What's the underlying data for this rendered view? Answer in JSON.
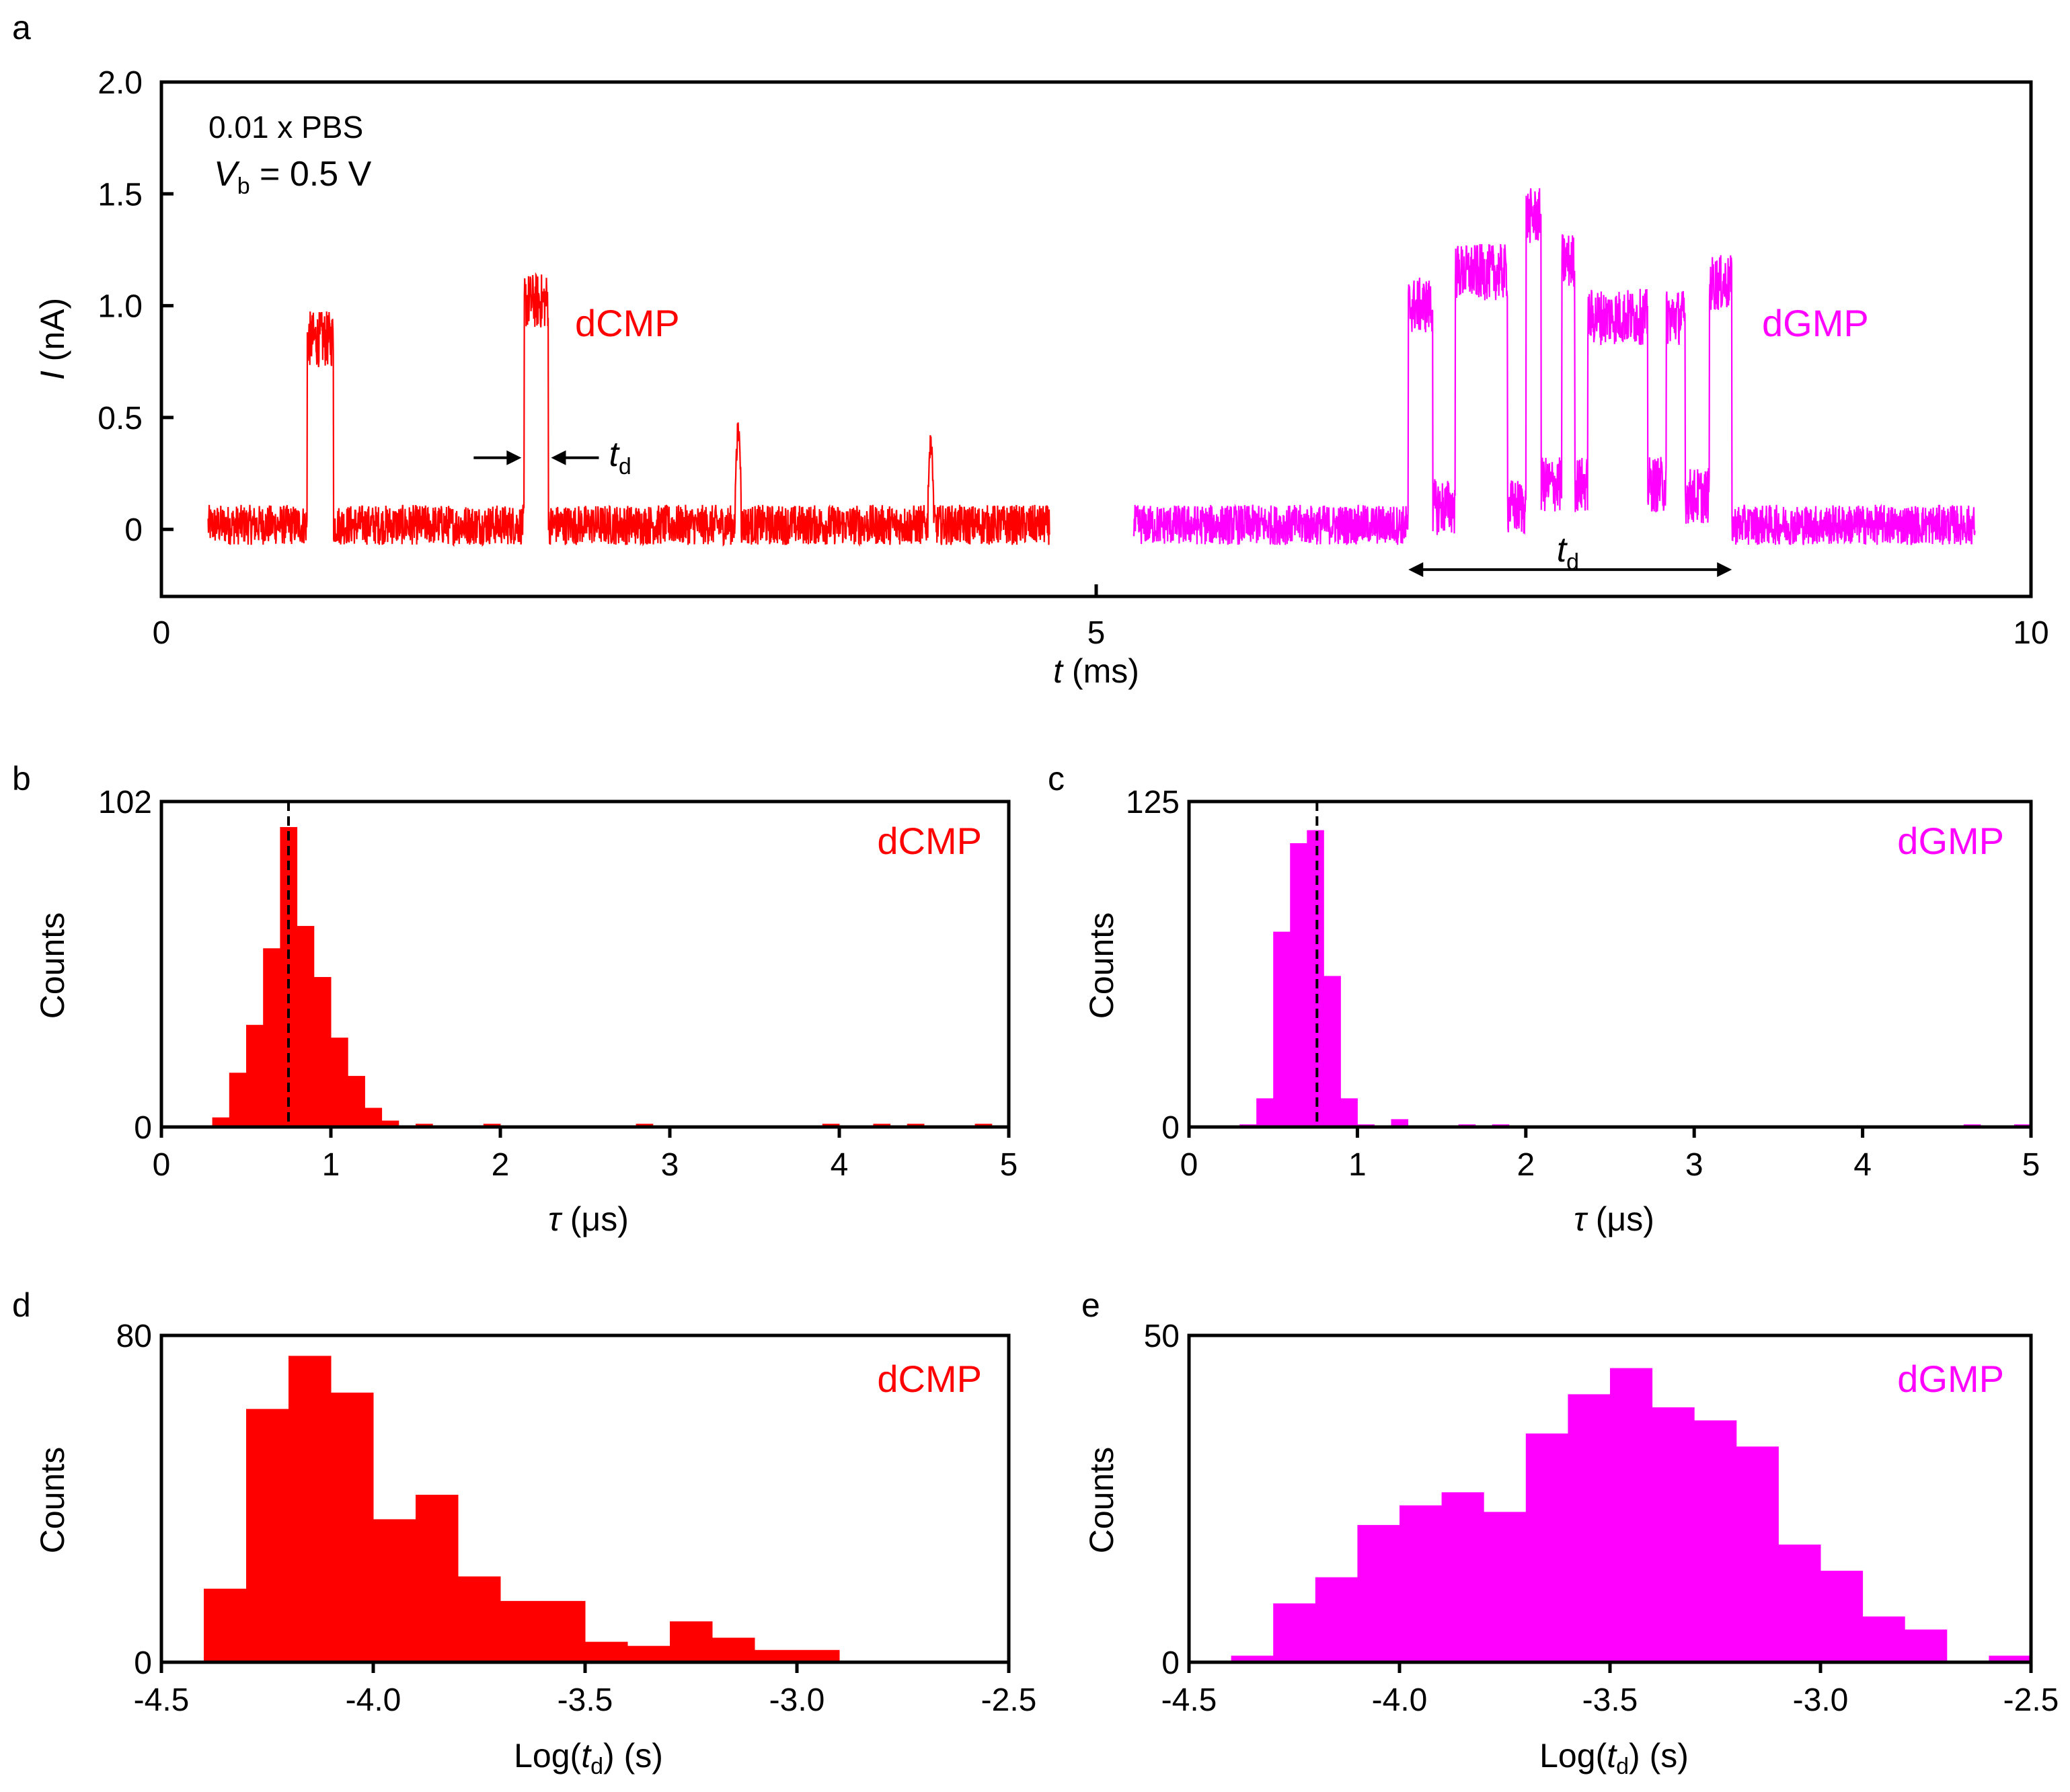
{
  "colors": {
    "dcmp": "#ff0000",
    "dgmp": "#ff00ff",
    "axis": "#000000"
  },
  "chart_data": [
    {
      "panel": "a",
      "type": "line",
      "xlabel_var": "t",
      "xlabel_unit": " (ms)",
      "ylabel_var": "I",
      "ylabel_unit": " (nA)",
      "xlim": [
        0,
        10
      ],
      "ylim": [
        -0.3,
        2.0
      ],
      "xticks": [
        "0",
        "5",
        "10"
      ],
      "xtick_values": [
        0,
        5,
        10
      ],
      "yticks": [
        "0",
        "0.5",
        "1.0",
        "1.5",
        "2.0"
      ],
      "ytick_values": [
        0,
        0.5,
        1.0,
        1.5,
        2.0
      ],
      "annotation_buffer": "0.01 x PBS",
      "annotation_bias_var": "V",
      "annotation_bias_sub": "b",
      "annotation_bias_value": " = 0.5 V",
      "dwell_label_var": "t",
      "dwell_label_sub": "d",
      "series": [
        {
          "name": "dCMP",
          "t_range": [
            0.25,
            4.75
          ],
          "baseline": 0.02,
          "noise": 0.09,
          "events": [
            {
              "t_start": 0.78,
              "t_end": 0.92,
              "level": 0.85
            },
            {
              "t_start": 1.94,
              "t_end": 2.07,
              "level": 1.02
            },
            {
              "t_start": 3.07,
              "t_end": 3.1,
              "level": 0.5
            },
            {
              "t_start": 4.1,
              "t_end": 4.13,
              "level": 0.45
            }
          ]
        },
        {
          "name": "dGMP",
          "t_range": [
            5.2,
            9.7
          ],
          "baseline": 0.02,
          "noise": 0.09,
          "events": [
            {
              "t_start": 6.67,
              "t_end": 6.8,
              "level": 1.0
            },
            {
              "t_start": 6.8,
              "t_end": 6.92,
              "level": 0.1
            },
            {
              "t_start": 6.92,
              "t_end": 7.2,
              "level": 1.15
            },
            {
              "t_start": 7.2,
              "t_end": 7.3,
              "level": 0.1
            },
            {
              "t_start": 7.3,
              "t_end": 7.38,
              "level": 1.4
            },
            {
              "t_start": 7.38,
              "t_end": 7.49,
              "level": 0.2
            },
            {
              "t_start": 7.49,
              "t_end": 7.56,
              "level": 1.2
            },
            {
              "t_start": 7.56,
              "t_end": 7.63,
              "level": 0.2
            },
            {
              "t_start": 7.63,
              "t_end": 7.95,
              "level": 0.95
            },
            {
              "t_start": 7.95,
              "t_end": 8.05,
              "level": 0.2
            },
            {
              "t_start": 8.05,
              "t_end": 8.15,
              "level": 0.95
            },
            {
              "t_start": 8.15,
              "t_end": 8.28,
              "level": 0.15
            },
            {
              "t_start": 8.28,
              "t_end": 8.4,
              "level": 1.1
            }
          ]
        }
      ],
      "dwell_markers": [
        {
          "series": "dCMP",
          "t_start": 1.94,
          "t_end": 2.07,
          "y": 0.32,
          "style": "inward-arrows"
        },
        {
          "series": "dGMP",
          "t_start": 6.67,
          "t_end": 8.4,
          "y": -0.18,
          "style": "double-arrow"
        }
      ]
    },
    {
      "panel": "b",
      "type": "bar",
      "series_name": "dCMP",
      "xlabel_var": "τ",
      "xlabel_unit": " (μs)",
      "ylabel": "Counts",
      "xlim": [
        0,
        5
      ],
      "ylim": [
        0,
        102
      ],
      "xticks": [
        "0",
        "1",
        "2",
        "3",
        "4",
        "5"
      ],
      "xtick_values": [
        0,
        1,
        2,
        3,
        4,
        5
      ],
      "yticks": [
        "0",
        "102"
      ],
      "ytick_values": [
        0,
        102
      ],
      "bin_width": 0.1,
      "bins_start": [
        0.3,
        0.4,
        0.5,
        0.6,
        0.7,
        0.8,
        0.9,
        1.0,
        1.1,
        1.2,
        1.3,
        1.5,
        1.9,
        2.8,
        3.9,
        4.2,
        4.4,
        4.8
      ],
      "counts": [
        3,
        17,
        32,
        56,
        94,
        63,
        47,
        28,
        16,
        6,
        2,
        1,
        1,
        1,
        1,
        1,
        1,
        1
      ],
      "mean_line": 0.75
    },
    {
      "panel": "c",
      "type": "bar",
      "series_name": "dGMP",
      "xlabel_var": "τ",
      "xlabel_unit": " (μs)",
      "ylabel": "Counts",
      "xlim": [
        0,
        5
      ],
      "ylim": [
        0,
        125
      ],
      "xticks": [
        "0",
        "1",
        "2",
        "3",
        "4",
        "5"
      ],
      "xtick_values": [
        0,
        1,
        2,
        3,
        4,
        5
      ],
      "yticks": [
        "0",
        "125"
      ],
      "ytick_values": [
        0,
        125
      ],
      "bin_width": 0.1,
      "bins_start": [
        0.3,
        0.4,
        0.5,
        0.6,
        0.7,
        0.8,
        0.9,
        1.0,
        1.2,
        1.6,
        1.8,
        4.6,
        4.9
      ],
      "counts": [
        1,
        11,
        75,
        109,
        114,
        58,
        11,
        1,
        3,
        1,
        1,
        1,
        1
      ],
      "mean_line": 0.76
    },
    {
      "panel": "d",
      "type": "bar",
      "series_name": "dCMP",
      "xlabel_var": "Log(",
      "xlabel_sym": "t",
      "xlabel_sub": "d",
      "xlabel_unit": ") (s)",
      "ylabel": "Counts",
      "xlim": [
        -4.5,
        -2.5
      ],
      "ylim": [
        0,
        80
      ],
      "xticks": [
        "-4.5",
        "-4.0",
        "-3.5",
        "-3.0",
        "-2.5"
      ],
      "xtick_values": [
        -4.5,
        -4.0,
        -3.5,
        -3.0,
        -2.5
      ],
      "yticks": [
        "0",
        "80"
      ],
      "ytick_values": [
        0,
        80
      ],
      "bin_width": 0.1,
      "bins_start": [
        -4.4,
        -4.3,
        -4.2,
        -4.1,
        -4.0,
        -3.9,
        -3.8,
        -3.7,
        -3.6,
        -3.5,
        -3.4,
        -3.3,
        -3.2,
        -3.1,
        -3.0
      ],
      "counts": [
        18,
        62,
        75,
        66,
        35,
        41,
        21,
        15,
        15,
        5,
        4,
        10,
        6,
        3,
        3
      ]
    },
    {
      "panel": "e",
      "type": "bar",
      "series_name": "dGMP",
      "xlabel_var": "Log(",
      "xlabel_sym": "t",
      "xlabel_sub": "d",
      "xlabel_unit": ") (s)",
      "ylabel": "Counts",
      "xlim": [
        -4.5,
        -2.5
      ],
      "ylim": [
        0,
        50
      ],
      "xticks": [
        "-4.5",
        "-4.0",
        "-3.5",
        "-3.0",
        "-2.5"
      ],
      "xtick_values": [
        -4.5,
        -4.0,
        -3.5,
        -3.0,
        -2.5
      ],
      "yticks": [
        "0",
        "50"
      ],
      "ytick_values": [
        0,
        50
      ],
      "bin_width": 0.1,
      "bins_start": [
        -4.4,
        -4.3,
        -4.2,
        -4.1,
        -4.0,
        -3.9,
        -3.8,
        -3.7,
        -3.6,
        -3.5,
        -3.4,
        -3.3,
        -3.2,
        -3.1,
        -3.0,
        -2.9,
        -2.8,
        -2.6
      ],
      "counts": [
        1,
        9,
        13,
        21,
        24,
        26,
        23,
        35,
        41,
        45,
        39,
        37,
        33,
        18,
        14,
        7,
        5,
        1
      ]
    }
  ]
}
